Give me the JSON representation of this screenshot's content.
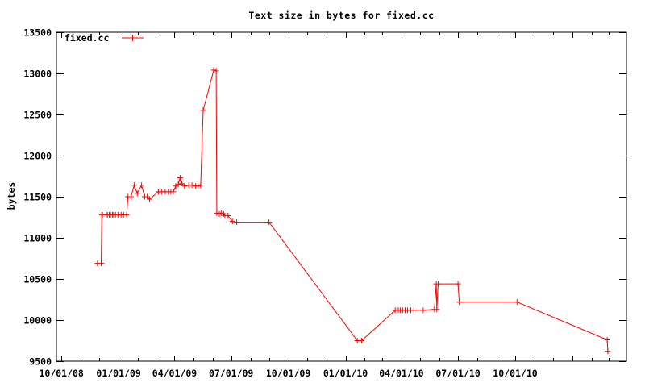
{
  "chart_data": {
    "type": "line",
    "title": "Text size in bytes for fixed.cc",
    "ylabel": "bytes",
    "xlabel": "",
    "series_name": "fixed.cc",
    "line_color": "#ff0000",
    "axis_color": "#000000",
    "background_color": "#ffffff",
    "grid": false,
    "legend_position": "top-left-inside",
    "ylim": [
      9500,
      13500
    ],
    "y_ticks": [
      9500,
      10000,
      10500,
      11000,
      11500,
      12000,
      12500,
      13000,
      13500
    ],
    "xlim": [
      "2008-09-23",
      "2011-03-29"
    ],
    "x_ticks_major": [
      {
        "date": "2008-10-01",
        "label": "10/01/08"
      },
      {
        "date": "2009-01-01",
        "label": "01/01/09"
      },
      {
        "date": "2009-04-01",
        "label": "04/01/09"
      },
      {
        "date": "2009-07-01",
        "label": "07/01/09"
      },
      {
        "date": "2009-10-01",
        "label": "10/01/09"
      },
      {
        "date": "2010-01-01",
        "label": "01/01/10"
      },
      {
        "date": "2010-04-01",
        "label": "04/01/10"
      },
      {
        "date": "2010-07-01",
        "label": "07/01/10"
      },
      {
        "date": "2010-10-01",
        "label": "10/01/10"
      },
      {
        "date": "2011-01-01",
        "label": ""
      }
    ],
    "x_minor_tick_interval": "monthly",
    "points": [
      [
        "2008-11-28",
        10690
      ],
      [
        "2008-12-04",
        10690
      ],
      [
        "2008-12-05",
        11280
      ],
      [
        "2008-12-06",
        11280
      ],
      [
        "2008-12-12",
        11280
      ],
      [
        "2008-12-14",
        11280
      ],
      [
        "2008-12-17",
        11280
      ],
      [
        "2008-12-19",
        11280
      ],
      [
        "2008-12-22",
        11280
      ],
      [
        "2008-12-24",
        11280
      ],
      [
        "2008-12-27",
        11280
      ],
      [
        "2008-12-31",
        11280
      ],
      [
        "2009-01-05",
        11280
      ],
      [
        "2009-01-09",
        11280
      ],
      [
        "2009-01-14",
        11280
      ],
      [
        "2009-01-16",
        11500
      ],
      [
        "2009-01-21",
        11500
      ],
      [
        "2009-01-26",
        11640
      ],
      [
        "2009-01-31",
        11540
      ],
      [
        "2009-02-07",
        11640
      ],
      [
        "2009-02-12",
        11500
      ],
      [
        "2009-02-16",
        11500
      ],
      [
        "2009-02-20",
        11470
      ],
      [
        "2009-03-06",
        11560
      ],
      [
        "2009-03-11",
        11560
      ],
      [
        "2009-03-17",
        11560
      ],
      [
        "2009-03-22",
        11560
      ],
      [
        "2009-03-26",
        11560
      ],
      [
        "2009-03-30",
        11560
      ],
      [
        "2009-04-03",
        11630
      ],
      [
        "2009-04-07",
        11650
      ],
      [
        "2009-04-10",
        11730
      ],
      [
        "2009-04-13",
        11660
      ],
      [
        "2009-04-17",
        11630
      ],
      [
        "2009-04-24",
        11640
      ],
      [
        "2009-04-29",
        11640
      ],
      [
        "2009-05-05",
        11630
      ],
      [
        "2009-05-09",
        11630
      ],
      [
        "2009-05-13",
        11640
      ],
      [
        "2009-05-17",
        12550
      ],
      [
        "2009-06-03",
        13040
      ],
      [
        "2009-06-07",
        13030
      ],
      [
        "2009-06-08",
        11300
      ],
      [
        "2009-06-12",
        11290
      ],
      [
        "2009-06-15",
        11300
      ],
      [
        "2009-06-19",
        11290
      ],
      [
        "2009-06-21",
        11270
      ],
      [
        "2009-06-26",
        11270
      ],
      [
        "2009-07-03",
        11200
      ],
      [
        "2009-07-10",
        11190
      ],
      [
        "2009-08-31",
        11190
      ],
      [
        "2010-01-20",
        9750
      ],
      [
        "2010-01-27",
        9750
      ],
      [
        "2010-03-22",
        10120
      ],
      [
        "2010-03-27",
        10120
      ],
      [
        "2010-03-30",
        10120
      ],
      [
        "2010-04-03",
        10120
      ],
      [
        "2010-04-07",
        10120
      ],
      [
        "2010-04-11",
        10120
      ],
      [
        "2010-04-16",
        10120
      ],
      [
        "2010-04-21",
        10120
      ],
      [
        "2010-05-06",
        10120
      ],
      [
        "2010-05-24",
        10130
      ],
      [
        "2010-05-27",
        10440
      ],
      [
        "2010-05-28",
        10130
      ],
      [
        "2010-05-30",
        10440
      ],
      [
        "2010-07-01",
        10440
      ],
      [
        "2010-07-03",
        10220
      ],
      [
        "2010-10-04",
        10220
      ],
      [
        "2011-02-26",
        9760
      ],
      [
        "2011-02-27",
        9620
      ]
    ]
  }
}
